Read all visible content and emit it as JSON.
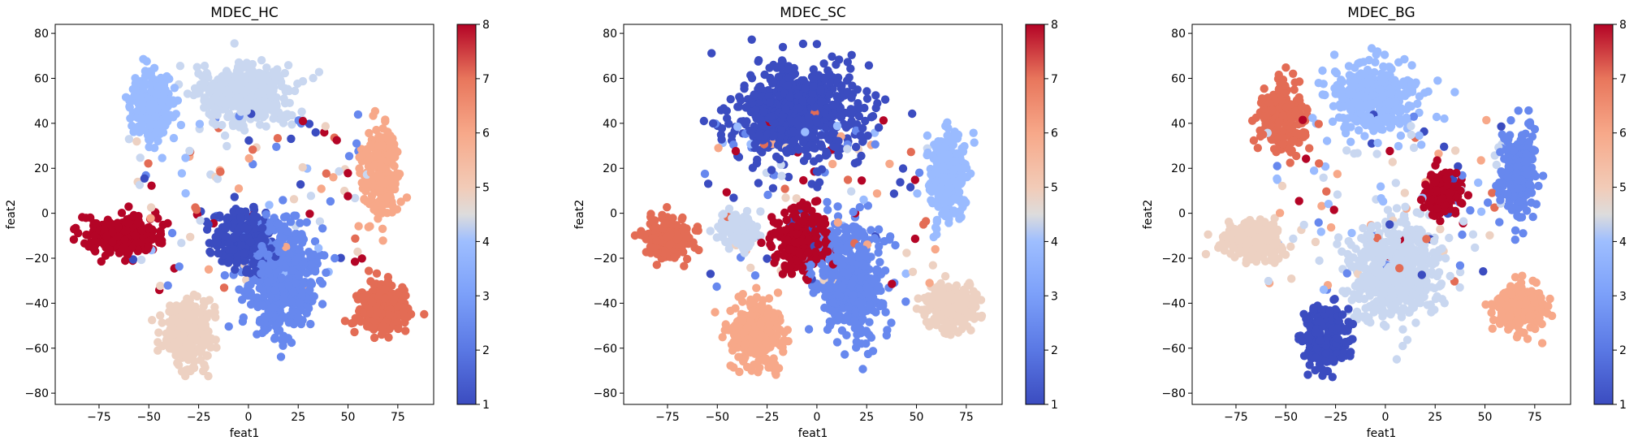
{
  "chart_data": [
    {
      "type": "scatter",
      "title": "MDEC_HC",
      "xlabel": "feat1",
      "ylabel": "feat2",
      "xlim": [
        -97,
        93
      ],
      "ylim": [
        -85,
        84
      ],
      "xticks": [
        -75,
        -50,
        -25,
        0,
        25,
        50,
        75
      ],
      "yticks": [
        -80,
        -60,
        -40,
        -20,
        0,
        20,
        40,
        60,
        80
      ],
      "colorbar": {
        "min": 1,
        "max": 8,
        "ticks": [
          1,
          2,
          3,
          4,
          5,
          6,
          7,
          8
        ],
        "colormap": "coolwarm"
      },
      "grid": false,
      "clusters": [
        {
          "label": 1,
          "center": [
            -3,
            -11
          ],
          "spread": [
            13,
            11
          ],
          "n": 320
        },
        {
          "label": 2,
          "center": [
            17,
            -28
          ],
          "spread": [
            15,
            22
          ],
          "n": 480
        },
        {
          "label": 3,
          "center": [
            -48,
            48
          ],
          "spread": [
            9,
            13
          ],
          "n": 240
        },
        {
          "label": 4,
          "center": [
            -2,
            53
          ],
          "spread": [
            20,
            11
          ],
          "n": 460
        },
        {
          "label": 5,
          "center": [
            -30,
            -53
          ],
          "spread": [
            12,
            13
          ],
          "n": 300
        },
        {
          "label": 6,
          "center": [
            66,
            18
          ],
          "spread": [
            8,
            18
          ],
          "n": 260
        },
        {
          "label": 7,
          "center": [
            67,
            -42
          ],
          "spread": [
            11,
            10
          ],
          "n": 280
        },
        {
          "label": 8,
          "center": [
            -63,
            -10
          ],
          "spread": [
            16,
            8
          ],
          "n": 300
        }
      ]
    },
    {
      "type": "scatter",
      "title": "MDEC_SC",
      "xlabel": "feat1",
      "ylabel": "feat2",
      "xlim": [
        -97,
        93
      ],
      "ylim": [
        -85,
        84
      ],
      "xticks": [
        -75,
        -50,
        -25,
        0,
        25,
        50,
        75
      ],
      "yticks": [
        -80,
        -60,
        -40,
        -20,
        0,
        20,
        40,
        60,
        80
      ],
      "colorbar": {
        "min": 1,
        "max": 8,
        "ticks": [
          1,
          2,
          3,
          4,
          5,
          6,
          7,
          8
        ],
        "colormap": "coolwarm"
      },
      "grid": false,
      "clusters": [
        {
          "label": 1,
          "center": [
            -10,
            45
          ],
          "spread": [
            28,
            18
          ],
          "n": 700
        },
        {
          "label": 2,
          "center": [
            17,
            -30
          ],
          "spread": [
            14,
            22
          ],
          "n": 480
        },
        {
          "label": 3,
          "center": [
            66,
            18
          ],
          "spread": [
            8,
            18
          ],
          "n": 260
        },
        {
          "label": 4,
          "center": [
            -40,
            -8
          ],
          "spread": [
            8,
            7
          ],
          "n": 150
        },
        {
          "label": 5,
          "center": [
            67,
            -42
          ],
          "spread": [
            11,
            9
          ],
          "n": 280
        },
        {
          "label": 6,
          "center": [
            -30,
            -54
          ],
          "spread": [
            12,
            13
          ],
          "n": 300
        },
        {
          "label": 7,
          "center": [
            -75,
            -12
          ],
          "spread": [
            10,
            8
          ],
          "n": 240
        },
        {
          "label": 8,
          "center": [
            -8,
            -12
          ],
          "spread": [
            12,
            12
          ],
          "n": 320
        }
      ]
    },
    {
      "type": "scatter",
      "title": "MDEC_BG",
      "xlabel": "feat1",
      "ylabel": "feat2",
      "xlim": [
        -97,
        93
      ],
      "ylim": [
        -85,
        84
      ],
      "xticks": [
        -75,
        -50,
        -25,
        0,
        25,
        50,
        75
      ],
      "yticks": [
        -80,
        -60,
        -40,
        -20,
        0,
        20,
        40,
        60,
        80
      ],
      "colorbar": {
        "min": 1,
        "max": 8,
        "ticks": [
          1,
          2,
          3,
          4,
          5,
          6,
          7,
          8
        ],
        "colormap": "coolwarm"
      },
      "grid": false,
      "clusters": [
        {
          "label": 1,
          "center": [
            -30,
            -55
          ],
          "spread": [
            10,
            12
          ],
          "n": 300
        },
        {
          "label": 2,
          "center": [
            66,
            18
          ],
          "spread": [
            8,
            18
          ],
          "n": 260
        },
        {
          "label": 3,
          "center": [
            -5,
            52
          ],
          "spread": [
            18,
            13
          ],
          "n": 420
        },
        {
          "label": 4,
          "center": [
            5,
            -25
          ],
          "spread": [
            20,
            20
          ],
          "n": 620
        },
        {
          "label": 5,
          "center": [
            -66,
            -12
          ],
          "spread": [
            13,
            8
          ],
          "n": 260
        },
        {
          "label": 6,
          "center": [
            67,
            -42
          ],
          "spread": [
            11,
            9
          ],
          "n": 280
        },
        {
          "label": 7,
          "center": [
            -52,
            42
          ],
          "spread": [
            10,
            14
          ],
          "n": 260
        },
        {
          "label": 8,
          "center": [
            28,
            9
          ],
          "spread": [
            8,
            9
          ],
          "n": 200
        }
      ]
    }
  ]
}
